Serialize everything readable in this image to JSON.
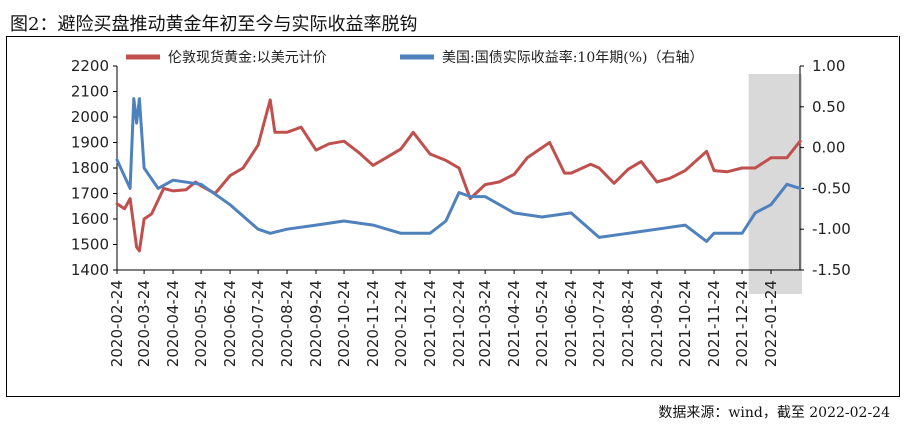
{
  "header": {
    "title": "图2：避险买盘推动黄金年初至今与实际收益率脱钩"
  },
  "footer": {
    "source": "数据来源：wind，截至 2022-02-24"
  },
  "colors": {
    "gold_series": "#c0504d",
    "yield_series": "#4f81bd",
    "highlight": "#d9d9d9"
  },
  "chart_data": {
    "type": "line",
    "title": "",
    "xlabel": "",
    "ylabel": "",
    "y2label": "",
    "legend_position": "top",
    "grid": false,
    "ylim": [
      1400,
      2200
    ],
    "y2lim": [
      -1.5,
      1.0
    ],
    "y_ticks": [
      1400,
      1500,
      1600,
      1700,
      1800,
      1900,
      2000,
      2100,
      2200
    ],
    "y2_ticks": [
      -1.5,
      -1.0,
      -0.5,
      0.0,
      0.5,
      1.0
    ],
    "y_tick_labels": [
      "1400",
      "1500",
      "1600",
      "1700",
      "1800",
      "1900",
      "2000",
      "2100",
      "2200"
    ],
    "y2_tick_labels": [
      "-1.50",
      "-1.00",
      "-0.50",
      "0.00",
      "0.50",
      "1.00"
    ],
    "x_ticks": [
      "2020-02-24",
      "2020-03-24",
      "2020-04-24",
      "2020-05-24",
      "2020-06-24",
      "2020-07-24",
      "2020-08-24",
      "2020-09-24",
      "2020-10-24",
      "2020-11-24",
      "2020-12-24",
      "2021-01-24",
      "2021-02-24",
      "2021-03-24",
      "2021-04-24",
      "2021-05-24",
      "2021-06-24",
      "2021-07-24",
      "2021-08-24",
      "2021-09-24",
      "2021-10-24",
      "2021-11-24",
      "2021-12-24",
      "2022-01-24"
    ],
    "highlight_range": [
      "2021-12-31",
      "2022-02-24"
    ],
    "series": [
      {
        "name": "伦敦现货黄金:以美元计价",
        "axis": "left",
        "x": [
          "2020-02-24",
          "2020-03-03",
          "2020-03-09",
          "2020-03-16",
          "2020-03-19",
          "2020-03-24",
          "2020-04-01",
          "2020-04-14",
          "2020-04-24",
          "2020-05-08",
          "2020-05-18",
          "2020-05-24",
          "2020-06-08",
          "2020-06-24",
          "2020-07-08",
          "2020-07-24",
          "2020-08-06",
          "2020-08-11",
          "2020-08-24",
          "2020-09-08",
          "2020-09-24",
          "2020-10-08",
          "2020-10-24",
          "2020-11-09",
          "2020-11-24",
          "2020-12-08",
          "2020-12-24",
          "2021-01-06",
          "2021-01-24",
          "2021-02-10",
          "2021-02-24",
          "2021-03-08",
          "2021-03-24",
          "2021-04-08",
          "2021-04-24",
          "2021-05-08",
          "2021-05-24",
          "2021-06-01",
          "2021-06-17",
          "2021-06-24",
          "2021-07-15",
          "2021-07-24",
          "2021-08-09",
          "2021-08-24",
          "2021-09-07",
          "2021-09-24",
          "2021-10-08",
          "2021-10-24",
          "2021-11-16",
          "2021-11-24",
          "2021-12-08",
          "2021-12-24",
          "2022-01-07",
          "2022-01-24",
          "2022-02-10",
          "2022-02-24"
        ],
        "values": [
          1660,
          1640,
          1680,
          1490,
          1475,
          1600,
          1620,
          1720,
          1710,
          1715,
          1745,
          1730,
          1700,
          1770,
          1800,
          1890,
          2067,
          1940,
          1940,
          1960,
          1870,
          1895,
          1905,
          1860,
          1810,
          1840,
          1875,
          1940,
          1855,
          1830,
          1800,
          1680,
          1735,
          1745,
          1775,
          1840,
          1880,
          1900,
          1780,
          1780,
          1815,
          1800,
          1740,
          1795,
          1825,
          1745,
          1760,
          1790,
          1865,
          1790,
          1785,
          1800,
          1800,
          1840,
          1840,
          1905
        ]
      },
      {
        "name": "美国:国债实际收益率:10年期(%)（右轴）",
        "axis": "right",
        "x": [
          "2020-02-24",
          "2020-03-03",
          "2020-03-09",
          "2020-03-13",
          "2020-03-16",
          "2020-03-19",
          "2020-03-24",
          "2020-04-08",
          "2020-04-24",
          "2020-05-24",
          "2020-06-24",
          "2020-07-24",
          "2020-08-06",
          "2020-08-24",
          "2020-09-24",
          "2020-10-24",
          "2020-11-24",
          "2020-12-24",
          "2021-01-24",
          "2021-02-10",
          "2021-02-24",
          "2021-03-08",
          "2021-03-24",
          "2021-04-24",
          "2021-05-24",
          "2021-06-24",
          "2021-07-24",
          "2021-08-24",
          "2021-09-24",
          "2021-10-24",
          "2021-11-16",
          "2021-11-24",
          "2021-12-24",
          "2022-01-07",
          "2022-01-24",
          "2022-02-10",
          "2022-02-24"
        ],
        "values": [
          -0.15,
          -0.35,
          -0.5,
          0.6,
          0.3,
          0.6,
          -0.25,
          -0.5,
          -0.4,
          -0.45,
          -0.7,
          -1.0,
          -1.05,
          -1.0,
          -0.95,
          -0.9,
          -0.95,
          -1.05,
          -1.05,
          -0.9,
          -0.55,
          -0.6,
          -0.6,
          -0.8,
          -0.85,
          -0.8,
          -1.1,
          -1.05,
          -1.0,
          -0.95,
          -1.15,
          -1.05,
          -1.05,
          -0.8,
          -0.7,
          -0.45,
          -0.5
        ]
      }
    ]
  }
}
